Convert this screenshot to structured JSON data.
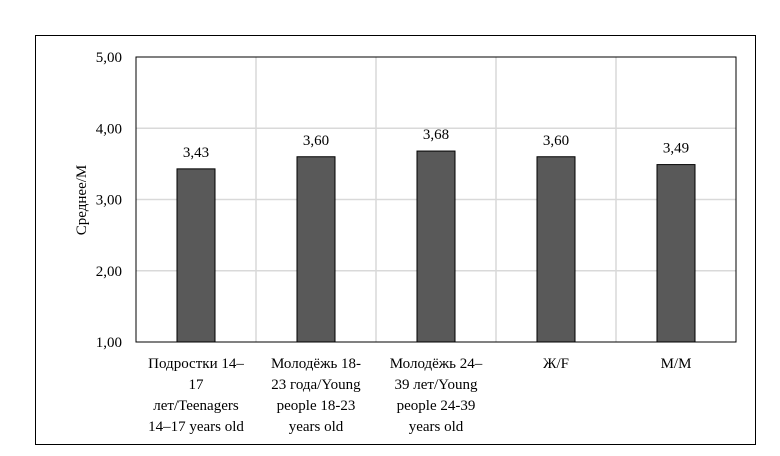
{
  "chart_data": {
    "type": "bar",
    "title": "",
    "xlabel": "",
    "ylabel": "Среднее/M",
    "ylim": [
      1,
      5
    ],
    "yticks": [
      "1,00",
      "2,00",
      "3,00",
      "4,00",
      "5,00"
    ],
    "grid": true,
    "categories": [
      [
        "Подростки 14–",
        "17",
        "лет/Teenagers",
        "14–17 years old"
      ],
      [
        "Молодёжь 18-",
        "23 года/Young",
        "people 18-23",
        "years old"
      ],
      [
        "Молодёжь 24–",
        "39 лет/Young",
        "people 24-39",
        "years old"
      ],
      [
        "Ж/F"
      ],
      [
        "М/M"
      ]
    ],
    "values": [
      3.43,
      3.6,
      3.68,
      3.6,
      3.49
    ],
    "value_labels": [
      "3,43",
      "3,60",
      "3,68",
      "3,60",
      "3,49"
    ],
    "bar_color": "#595959"
  }
}
